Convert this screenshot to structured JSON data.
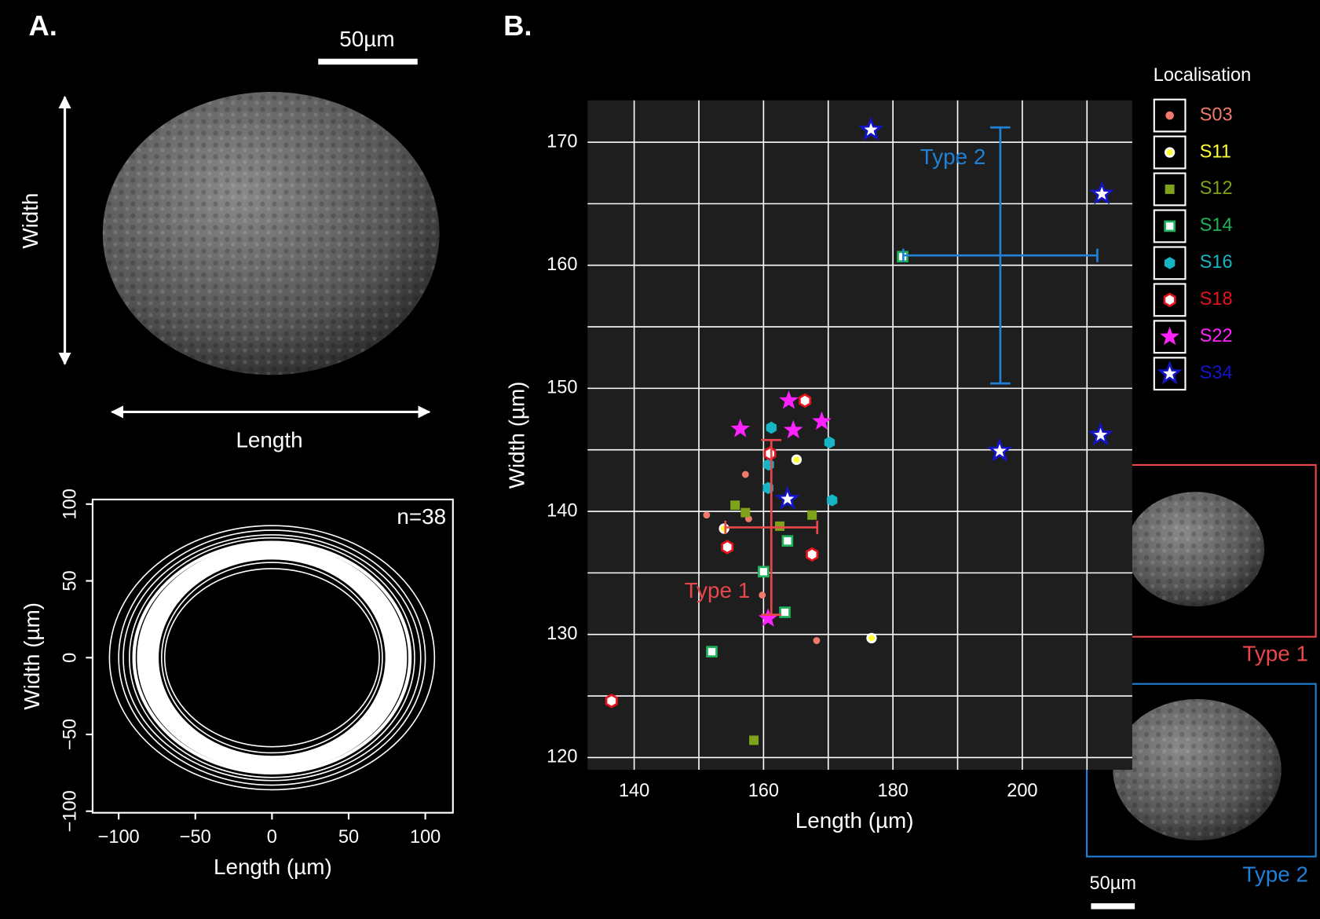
{
  "panel_a": {
    "label": "A.",
    "scale_bar": "50µm",
    "width_label": "Width",
    "length_label": "Length"
  },
  "panel_b": {
    "label": "B.",
    "inset_scale_bar": "50µm"
  },
  "chart_data": [
    {
      "type": "outline",
      "xlabel": "Length (µm)",
      "ylabel": "Width (µm)",
      "annotation": "n=38",
      "color": "#ffffff",
      "xlim": [
        -117,
        118
      ],
      "ylim": [
        -101,
        103
      ],
      "xticks": [
        {
          "value": -100,
          "label": "−100"
        },
        {
          "value": -50,
          "label": "−50"
        },
        0,
        50,
        100
      ],
      "yticks": [
        {
          "value": -100,
          "label": "−100"
        },
        {
          "value": -50,
          "label": "−50"
        },
        0,
        50,
        100
      ],
      "semi_length": [
        106,
        100,
        97,
        93,
        90,
        87,
        85,
        83,
        82,
        80,
        79,
        78,
        76,
        75,
        72,
        70
      ],
      "semi_width": [
        86,
        83,
        80,
        78,
        75,
        73,
        72,
        71,
        70,
        69,
        68,
        67,
        66,
        65,
        62,
        58
      ]
    },
    {
      "type": "scatter",
      "xlabel": "Length (µm)",
      "ylabel": "Width (µm)",
      "legend_title": "Localisation",
      "grid": true,
      "xlim": [
        132.8,
        217
      ],
      "ylim": [
        119,
        173.4
      ],
      "xticks": [
        140,
        160,
        180,
        200
      ],
      "yticks": [
        120,
        130,
        140,
        150,
        160,
        170
      ],
      "xgrid": [
        140,
        150,
        160,
        170,
        180,
        190,
        200,
        210
      ],
      "ygrid": [
        120,
        125,
        130,
        135,
        140,
        145,
        150,
        155,
        160,
        165,
        170
      ],
      "series": [
        {
          "name": "S03",
          "color": "#f07a6a",
          "fill": "#f07a6a",
          "marker": "circle",
          "x": [
            157.2,
            151.2,
            157.7,
            159.8,
            168.2
          ],
          "values": [
            143.0,
            139.7,
            139.4,
            133.2,
            129.5
          ]
        },
        {
          "name": "S11",
          "color": "#ffff33",
          "fill": "#ffff33",
          "marker": "circle",
          "x": [
            165.1,
            153.9,
            176.7
          ],
          "values": [
            144.2,
            138.6,
            129.7
          ]
        },
        {
          "name": "S12",
          "color": "#7ea31a",
          "fill": "#7ea31a",
          "marker": "square",
          "x": [
            155.6,
            157.2,
            162.5,
            167.5,
            158.5
          ],
          "values": [
            140.5,
            139.9,
            138.8,
            139.7,
            121.4
          ]
        },
        {
          "name": "S14",
          "color": "#1db35a",
          "fill": "#ffffff",
          "marker": "square",
          "x": [
            181.5,
            160.0,
            163.7,
            163.3,
            152.0
          ],
          "values": [
            160.7,
            135.1,
            137.6,
            131.8,
            128.6
          ]
        },
        {
          "name": "S16",
          "color": "#16b4c4",
          "fill": "#16b4c4",
          "marker": "hexagon",
          "x": [
            161.2,
            160.8,
            160.7,
            170.2,
            170.6
          ],
          "values": [
            146.8,
            143.8,
            141.9,
            145.6,
            140.9
          ]
        },
        {
          "name": "S18",
          "color": "#e3141d",
          "fill": "#ffffff",
          "marker": "hexagon",
          "x": [
            166.4,
            161.0,
            154.4,
            167.5,
            136.5
          ],
          "values": [
            149.0,
            144.7,
            137.1,
            136.5,
            124.6
          ]
        },
        {
          "name": "S22",
          "color": "#ff22ff",
          "fill": "#ff22ff",
          "marker": "star",
          "x": [
            156.4,
            163.9,
            164.6,
            169.0,
            160.7
          ],
          "values": [
            146.7,
            149.0,
            146.6,
            147.3,
            131.3
          ]
        },
        {
          "name": "S34",
          "color": "#1414c8",
          "fill": "#ffffff",
          "marker": "star",
          "x": [
            176.6,
            212.3,
            196.5,
            212.1,
            163.7
          ],
          "values": [
            171.0,
            165.8,
            144.9,
            146.2,
            141.0
          ]
        }
      ],
      "error_bars": [
        {
          "name": "Type 1",
          "color": "#e8474b",
          "x": 161.2,
          "xerr": 7.1,
          "y": 138.7,
          "yerr": 7.1
        },
        {
          "name": "Type 2",
          "color": "#1f80d6",
          "x": 196.6,
          "xerr": 15.0,
          "y": 160.8,
          "yerr": 10.4
        }
      ]
    }
  ]
}
